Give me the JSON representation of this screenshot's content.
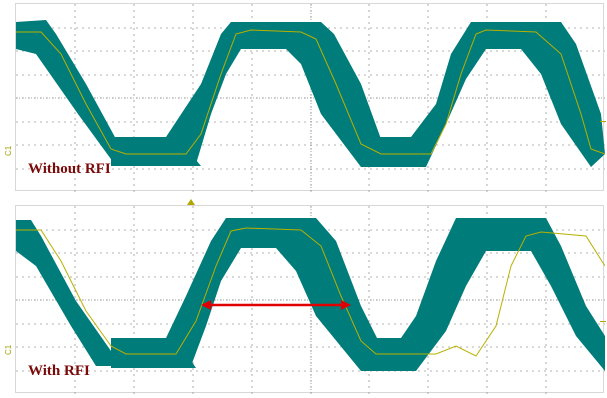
{
  "panels": [
    {
      "label": "Without RFI",
      "channel": "C1"
    },
    {
      "label": "With RFI",
      "channel": "C1"
    }
  ],
  "colors": {
    "eye_fill": "#007c7a",
    "trace": "#b8b000",
    "label": "#7a0a0a",
    "arrow": "#e00000",
    "grid": "#9a9a9a"
  },
  "icons": [
    "trigger-marker-icon",
    "channel-marker-icon",
    "arrow-icon"
  ]
}
